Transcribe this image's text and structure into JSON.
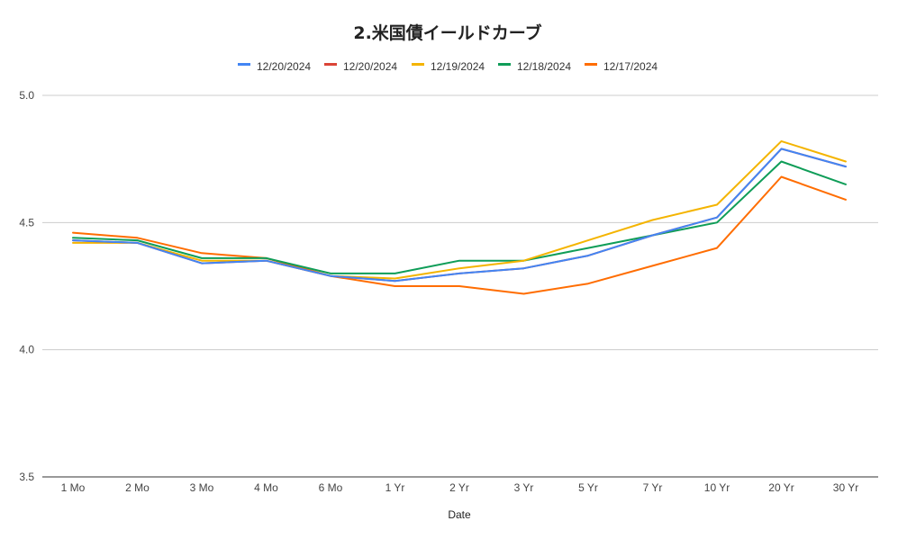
{
  "chart_data": {
    "type": "line",
    "title": "2.米国債イールドカーブ",
    "xlabel": "Date",
    "ylabel": "",
    "ylim": [
      3.5,
      5.0
    ],
    "yticks": [
      "3.5",
      "4.0",
      "4.5",
      "5.0"
    ],
    "grid": true,
    "legend_position": "top",
    "categories": [
      "1 Mo",
      "2 Mo",
      "3 Mo",
      "4 Mo",
      "6 Mo",
      "1 Yr",
      "2 Yr",
      "3 Yr",
      "5 Yr",
      "7 Yr",
      "10 Yr",
      "20 Yr",
      "30 Yr"
    ],
    "series": [
      {
        "name": "12/20/2024",
        "color": "#4285f4",
        "values": [
          4.43,
          4.42,
          4.34,
          4.35,
          4.29,
          4.27,
          4.3,
          4.32,
          4.37,
          4.45,
          4.52,
          4.79,
          4.72
        ]
      },
      {
        "name": "12/20/2024",
        "color": "#db4437",
        "values": [
          4.43,
          4.42,
          4.34,
          4.35,
          4.29,
          4.27,
          4.3,
          4.32,
          4.37,
          4.45,
          4.52,
          4.79,
          4.72
        ]
      },
      {
        "name": "12/19/2024",
        "color": "#f4b400",
        "values": [
          4.42,
          4.42,
          4.35,
          4.35,
          4.29,
          4.28,
          4.32,
          4.35,
          4.43,
          4.51,
          4.57,
          4.82,
          4.74
        ]
      },
      {
        "name": "12/18/2024",
        "color": "#0f9d58",
        "values": [
          4.44,
          4.43,
          4.36,
          4.36,
          4.3,
          4.3,
          4.35,
          4.35,
          4.4,
          4.45,
          4.5,
          4.74,
          4.65
        ]
      },
      {
        "name": "12/17/2024",
        "color": "#ff6d01",
        "values": [
          4.46,
          4.44,
          4.38,
          4.36,
          4.29,
          4.25,
          4.25,
          4.22,
          4.26,
          4.33,
          4.4,
          4.68,
          4.59
        ]
      }
    ]
  }
}
